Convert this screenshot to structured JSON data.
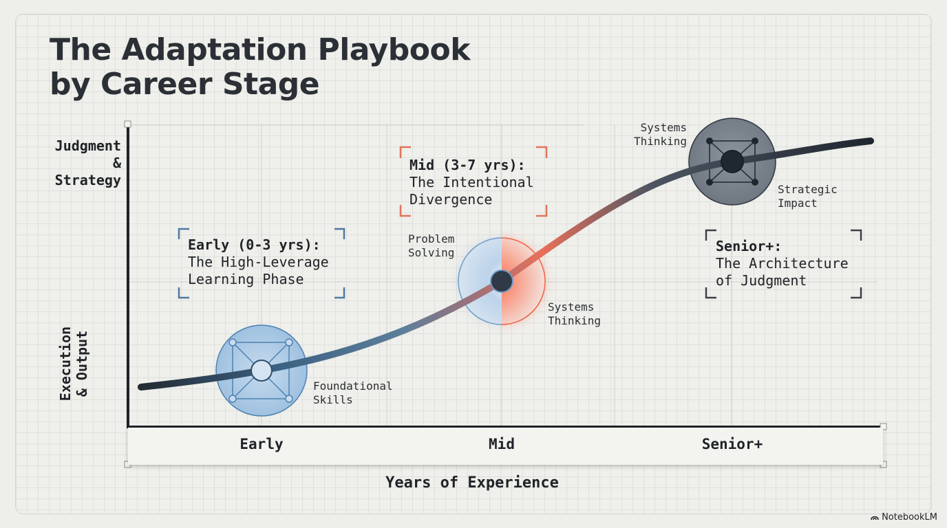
{
  "title": {
    "line1": "The Adaptation Playbook",
    "line2": "by Career Stage"
  },
  "y_axis": {
    "top_label": [
      "Judgment",
      "&",
      "Strategy"
    ],
    "bottom_label": [
      "Execution",
      "& Output"
    ]
  },
  "x_axis": {
    "title": "Years of Experience",
    "ticks": [
      "Early",
      "Mid",
      "Senior+"
    ]
  },
  "stages": [
    {
      "heading": "Early (0-3 yrs):",
      "line2": "The High-Leverage",
      "line3": "Learning Phase",
      "bracket_color": "#4d7aa2"
    },
    {
      "heading": "Mid (3-7 yrs):",
      "line2": "The Intentional",
      "line3": "Divergence",
      "bracket_color": "#e0755a"
    },
    {
      "heading": "Senior+:",
      "line2": "The Architecture",
      "line3": "of Judgment",
      "bracket_color": "#3b4148"
    }
  ],
  "node_labels": {
    "early": [
      "Foundational",
      "Skills"
    ],
    "mid_left": [
      "Problem",
      "Solving"
    ],
    "mid_right": [
      "Systems",
      "Thinking"
    ],
    "senior_top": [
      "Systems",
      "Thinking"
    ],
    "senior_right": [
      "Strategic",
      "Impact"
    ]
  },
  "colors": {
    "early": "#4d82b0",
    "mid_warm": "#ef6248",
    "senior": "#414a55",
    "axis": "#1e2328"
  },
  "brand": "NotebookLM",
  "icons": {
    "brand": "notebook-icon"
  }
}
